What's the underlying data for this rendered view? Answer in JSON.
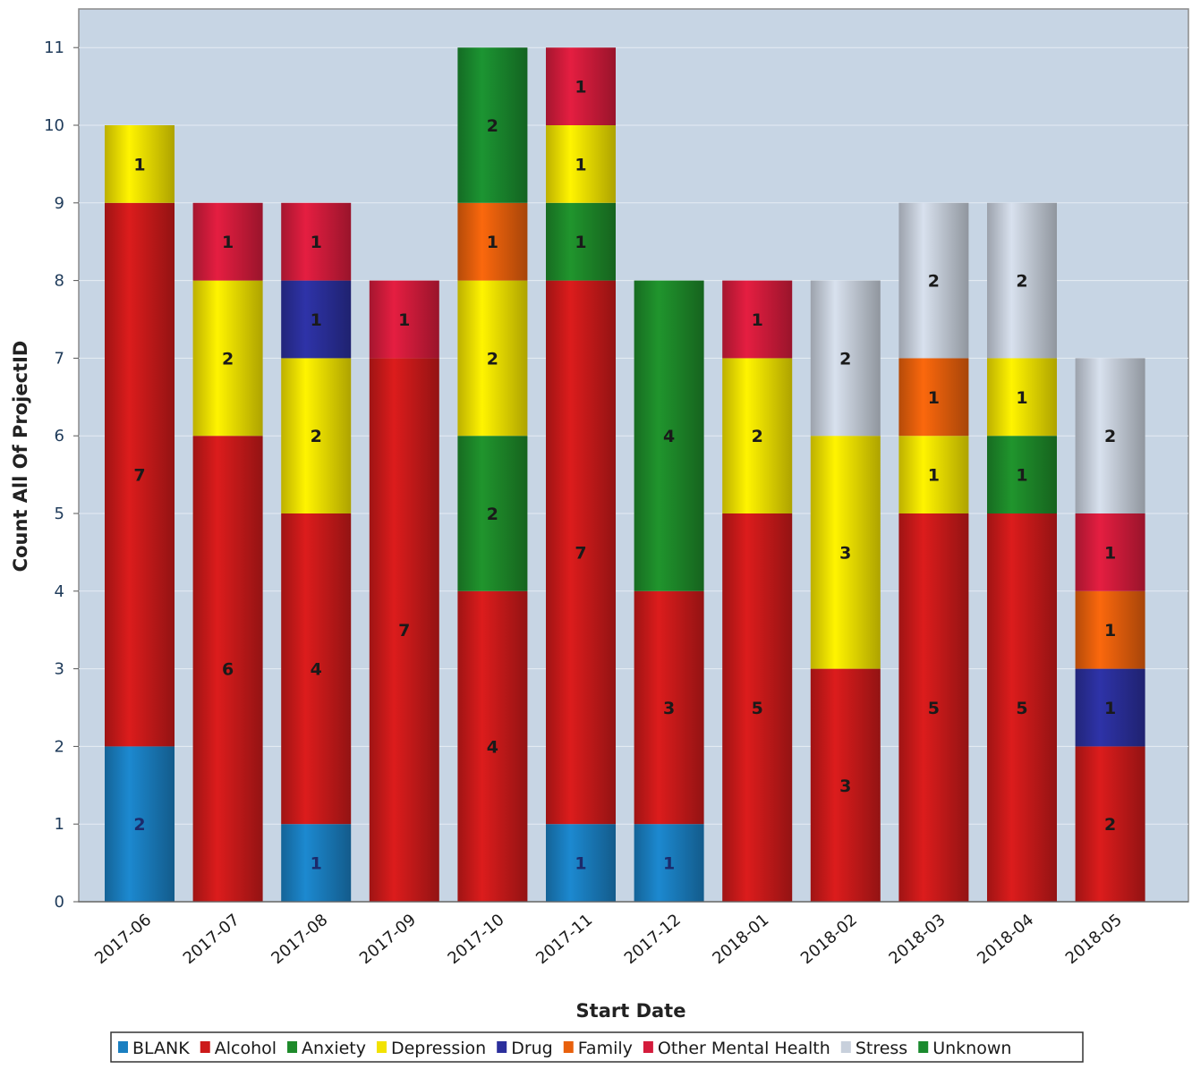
{
  "chart_data": {
    "type": "bar",
    "stacked": true,
    "xlabel": "Start Date",
    "ylabel": "Count All Of ProjectID",
    "ylim": [
      0,
      11
    ],
    "yticks": [
      0,
      1,
      2,
      3,
      4,
      5,
      6,
      7,
      8,
      9,
      10,
      11
    ],
    "grid": true,
    "legend_position": "bottom",
    "categories": [
      "2017-06",
      "2017-07",
      "2017-08",
      "2017-09",
      "2017-10",
      "2017-11",
      "2017-12",
      "2018-01",
      "2018-02",
      "2018-03",
      "2018-04",
      "2018-05"
    ],
    "series": [
      {
        "name": "BLANK",
        "color": "#1a7fc1",
        "values": [
          2,
          0,
          1,
          0,
          0,
          1,
          1,
          0,
          0,
          0,
          0,
          0
        ]
      },
      {
        "name": "Alcohol",
        "color": "#cc1a1a",
        "values": [
          7,
          6,
          4,
          7,
          4,
          7,
          3,
          5,
          3,
          5,
          5,
          2
        ]
      },
      {
        "name": "Anxiety",
        "color": "#1e8a2a",
        "values": [
          0,
          0,
          0,
          0,
          2,
          1,
          4,
          0,
          0,
          0,
          1,
          0
        ]
      },
      {
        "name": "Depression",
        "color": "#f2e200",
        "values": [
          1,
          2,
          2,
          0,
          2,
          1,
          0,
          2,
          3,
          1,
          1,
          0
        ]
      },
      {
        "name": "Drug",
        "color": "#2b2f9c",
        "values": [
          0,
          0,
          1,
          0,
          0,
          0,
          0,
          0,
          0,
          0,
          0,
          1
        ]
      },
      {
        "name": "Family",
        "color": "#e8600c",
        "values": [
          0,
          0,
          0,
          0,
          1,
          0,
          0,
          0,
          0,
          1,
          0,
          1
        ]
      },
      {
        "name": "Other Mental Health",
        "color": "#d41c3c",
        "values": [
          0,
          1,
          1,
          1,
          0,
          1,
          0,
          1,
          0,
          0,
          0,
          1
        ]
      },
      {
        "name": "Stress",
        "color": "#c8d0dc",
        "values": [
          0,
          0,
          0,
          0,
          0,
          0,
          0,
          0,
          2,
          2,
          2,
          2
        ]
      },
      {
        "name": "Unknown",
        "color": "#1a8a2e",
        "values": [
          0,
          0,
          0,
          0,
          2,
          0,
          0,
          0,
          0,
          0,
          0,
          0
        ]
      }
    ]
  }
}
